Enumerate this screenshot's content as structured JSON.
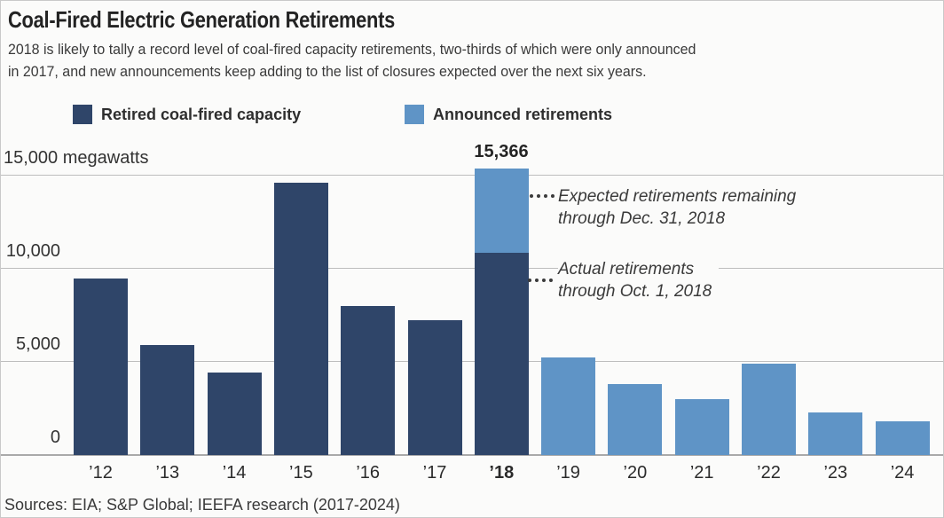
{
  "title": "Coal-Fired Electric Generation Retirements",
  "subtitle": {
    "line1": "2018 is likely to tally a record level of coal-fired capacity retirements, two-thirds of which were only announced",
    "line2": "in 2017, and new announcements keep adding to the list of closures expected over the next six years."
  },
  "legend": {
    "retired": {
      "label": "Retired coal-fired capacity",
      "color": "#2F4569"
    },
    "announced": {
      "label": "Announced retirements",
      "color": "#5F94C6"
    }
  },
  "y_axis": {
    "tick_15000": "15,000 megawatts",
    "tick_10000": "10,000",
    "tick_5000": "5,000",
    "tick_0": "0"
  },
  "annotations": {
    "peak_value_label": "15,366",
    "expected": {
      "line1": "Expected retirements remaining",
      "line2": "through Dec. 31, 2018"
    },
    "actual": {
      "line1": "Actual retirements",
      "line2": "through Oct. 1, 2018"
    }
  },
  "source": "Sources: EIA; S&P Global; IEEFA research (2017-2024)",
  "chart_data": {
    "type": "bar",
    "stacked": true,
    "unit": "megawatts",
    "title": "Coal-Fired Electric Generation Retirements",
    "categories": [
      "’12",
      "’13",
      "’14",
      "’15",
      "’16",
      "’17",
      "’18",
      "’19",
      "’20",
      "’21",
      "’22",
      "’23",
      "’24"
    ],
    "emphasized_category": "’18",
    "series": [
      {
        "name": "Retired coal-fired capacity",
        "color": "#2F4569",
        "values": [
          9500,
          5900,
          4450,
          14600,
          8000,
          7250,
          10850,
          0,
          0,
          0,
          0,
          0,
          0
        ]
      },
      {
        "name": "Announced retirements",
        "color": "#5F94C6",
        "values": [
          0,
          0,
          0,
          0,
          0,
          0,
          4516,
          5250,
          3800,
          3000,
          4900,
          2300,
          1800
        ]
      }
    ],
    "peak_total": 15366,
    "peak_total_category": "’18",
    "ylabel": "megawatts",
    "ylim": [
      0,
      15366
    ],
    "gridlines": [
      0,
      5000,
      10000,
      15000
    ],
    "legend_position": "top"
  }
}
